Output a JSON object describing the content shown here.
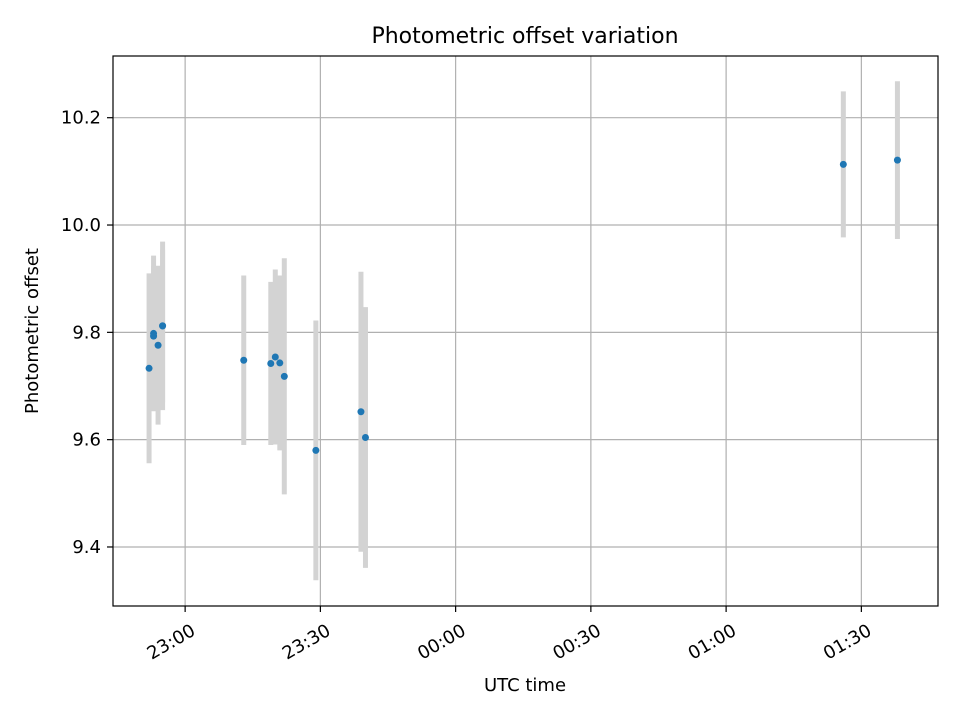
{
  "chart_data": {
    "type": "scatter",
    "title": "Photometric offset variation",
    "xlabel": "UTC time",
    "ylabel": "Photometric offset",
    "x_axis_type": "time",
    "xlim": [
      "22:44",
      "01:47"
    ],
    "ylim": [
      9.29,
      10.315
    ],
    "x_ticks": [
      {
        "t": "23:00",
        "label": "23:00"
      },
      {
        "t": "23:30",
        "label": "23:30"
      },
      {
        "t": "00:00",
        "label": "00:00"
      },
      {
        "t": "00:30",
        "label": "00:30"
      },
      {
        "t": "01:00",
        "label": "01:00"
      },
      {
        "t": "01:30",
        "label": "01:30"
      }
    ],
    "y_ticks": [
      9.4,
      9.6,
      9.8,
      10.0,
      10.2
    ],
    "y_tick_labels": [
      "9.4",
      "9.6",
      "9.8",
      "10.0",
      "10.2"
    ],
    "grid": true,
    "colors": {
      "points": "#1f77b4",
      "error_bars": "#d3d3d3",
      "grid": "#b0b0b0"
    },
    "series": [
      {
        "points": [
          {
            "t": "22:52",
            "y": 9.733,
            "err": 0.177
          },
          {
            "t": "22:53",
            "y": 9.798,
            "err": 0.145
          },
          {
            "t": "22:53",
            "y": 9.793,
            "err": 0.13
          },
          {
            "t": "22:54",
            "y": 9.776,
            "err": 0.148
          },
          {
            "t": "22:55",
            "y": 9.812,
            "err": 0.157
          },
          {
            "t": "22:55",
            "y": 9.812,
            "err": 0.142
          },
          {
            "t": "23:13",
            "y": 9.748,
            "err": 0.158
          },
          {
            "t": "23:19",
            "y": 9.742,
            "err": 0.152
          },
          {
            "t": "23:20",
            "y": 9.754,
            "err": 0.163
          },
          {
            "t": "23:21",
            "y": 9.743,
            "err": 0.163
          },
          {
            "t": "23:22",
            "y": 9.718,
            "err": 0.22
          },
          {
            "t": "23:29",
            "y": 9.58,
            "err": 0.242
          },
          {
            "t": "23:39",
            "y": 9.652,
            "err": 0.261
          },
          {
            "t": "23:40",
            "y": 9.604,
            "err": 0.243
          },
          {
            "t": "01:26",
            "y": 10.113,
            "err": 0.136
          },
          {
            "t": "01:38",
            "y": 10.121,
            "err": 0.147
          }
        ]
      }
    ]
  }
}
